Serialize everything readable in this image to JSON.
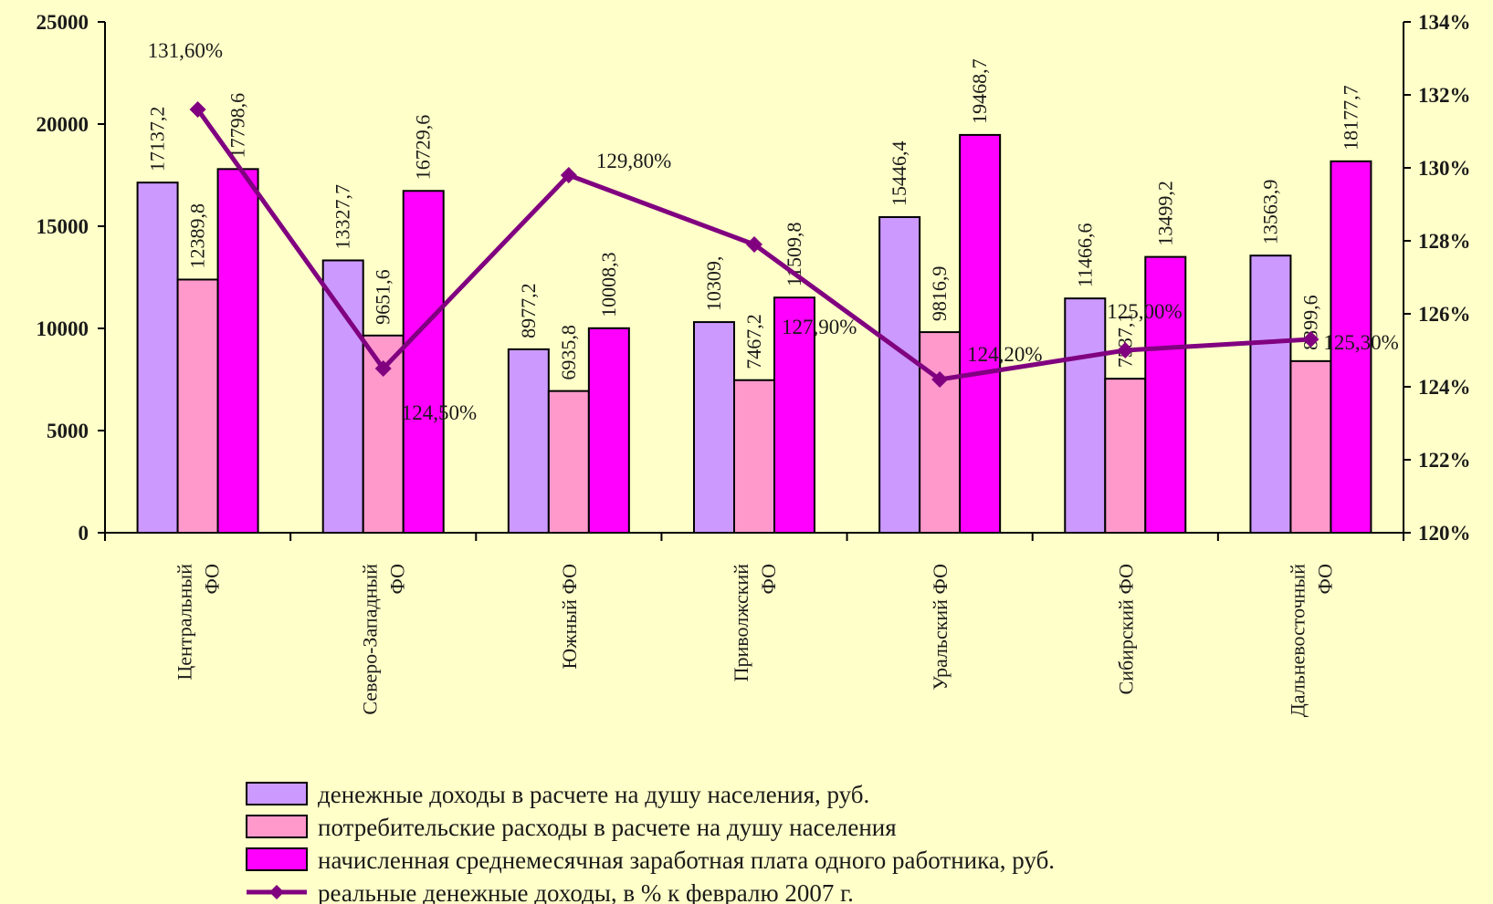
{
  "chart_data": {
    "type": "bar",
    "categories": [
      [
        "Центральный",
        "ФО"
      ],
      [
        "Северо-Западный",
        "ФО"
      ],
      [
        "Южный ФО"
      ],
      [
        "Приволжский",
        "ФО"
      ],
      [
        "Уральский  ФО"
      ],
      [
        "Сибирский  ФО"
      ],
      [
        "Дальневосточный",
        "ФО"
      ]
    ],
    "series": [
      {
        "name": "денежные доходы в расчете на душу населения, руб.",
        "color": "#CC99FF",
        "values": [
          17137.2,
          13327.7,
          8977.2,
          10309.0,
          15446.4,
          11466.6,
          13563.9
        ],
        "labels": [
          "17137,2",
          "13327,7",
          "8977,2",
          "10309,",
          "15446,4",
          "11466,6",
          "13563,9"
        ]
      },
      {
        "name": "потребительские расходы в расчете на душу населения",
        "color": "#FF99CC",
        "values": [
          12389.8,
          9651.6,
          6935.8,
          7467.2,
          9816.9,
          7537.1,
          8399.6
        ],
        "labels": [
          "12389,8",
          "9651,6",
          "6935,8",
          "7467,2",
          "9816,9",
          "7537,1",
          "8399,6"
        ]
      },
      {
        "name": "начисленная среднемесячная заработная плата одного работника, руб.",
        "color": "#FF00FF",
        "values": [
          17798.6,
          16729.6,
          10008.3,
          11509.8,
          19468.7,
          13499.2,
          18177.7
        ],
        "labels": [
          "17798,6",
          "16729,6",
          "10008,3",
          "11509,8",
          "19468,7",
          "13499,2",
          "18177,7"
        ]
      }
    ],
    "line_series": {
      "name": "реальные денежные доходы, в % к февралю 2007 г.",
      "color": "#800080",
      "values": [
        131.6,
        124.5,
        129.8,
        127.9,
        124.2,
        125.0,
        125.3
      ],
      "labels": [
        "131,60%",
        "124,50%",
        "129,80%",
        "127,90%",
        "124,20%",
        "125,00%",
        "125,30%"
      ]
    },
    "ylim": [
      0,
      25000
    ],
    "yticks": [
      "0",
      "5000",
      "10000",
      "15000",
      "20000",
      "25000"
    ],
    "y2lim": [
      120,
      134
    ],
    "y2ticks": [
      "120%",
      "122%",
      "124%",
      "126%",
      "128%",
      "130%",
      "132%",
      "134%"
    ],
    "legend_position": "bottom",
    "grid": false
  }
}
